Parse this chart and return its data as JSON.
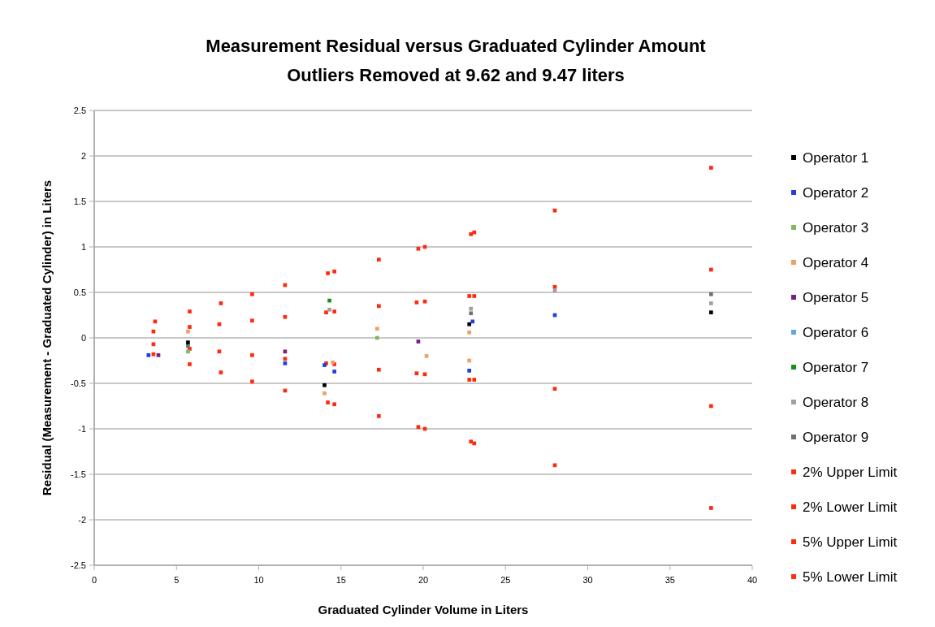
{
  "chart_data": {
    "type": "scatter",
    "title": "Measurement Residual versus Graduated Cylinder Amount",
    "subtitle": "Outliers Removed at 9.62 and 9.47 liters",
    "xlabel": "Graduated Cylinder Volume in Liters",
    "ylabel": "Residual (Measurement - Graduated Cylinder) in Liters",
    "xlim": [
      0,
      40
    ],
    "xticks": [
      0,
      5,
      10,
      15,
      20,
      25,
      30,
      35,
      40
    ],
    "ylim": [
      -2.5,
      2.5
    ],
    "yticks": [
      -2.5,
      -2,
      -1.5,
      -1,
      -0.5,
      0,
      0.5,
      1,
      1.5,
      2,
      2.5
    ],
    "grid": "y",
    "legend": "right",
    "marker": "square",
    "series": [
      {
        "name": "Operator 1",
        "color": "#000000",
        "x": [
          5.7,
          14,
          22.8,
          37.5
        ],
        "values": [
          -0.05,
          -0.52,
          0.15,
          0.28
        ]
      },
      {
        "name": "Operator 2",
        "color": "#1f3fe0",
        "x": [
          3.3,
          11.6,
          14,
          14.6,
          23,
          22.8,
          28
        ],
        "values": [
          -0.19,
          -0.28,
          -0.3,
          -0.37,
          0.18,
          -0.36,
          0.25
        ]
      },
      {
        "name": "Operator 3",
        "color": "#80b860",
        "x": [
          5.7,
          17.2
        ],
        "values": [
          -0.15,
          0
        ]
      },
      {
        "name": "Operator 4",
        "color": "#f0a060",
        "x": [
          5.7,
          14.5,
          14,
          17.2,
          20.2,
          22.8,
          22.8
        ],
        "values": [
          0.07,
          -0.27,
          -0.61,
          0.1,
          -0.2,
          0.06,
          -0.25
        ]
      },
      {
        "name": "Operator 5",
        "color": "#7a1f7a",
        "x": [
          3.9,
          11.6,
          19.7
        ],
        "values": [
          -0.19,
          -0.15,
          -0.04
        ]
      },
      {
        "name": "Operator 6",
        "color": "#60a8e0"
      },
      {
        "name": "Operator 7",
        "color": "#1a8f1a",
        "x": [
          14.3
        ],
        "values": [
          0.41
        ]
      },
      {
        "name": "Operator 8",
        "color": "#a0a0a0",
        "x": [
          14.3,
          22.9,
          28,
          37.5
        ],
        "values": [
          0.31,
          0.32,
          0.52,
          0.38
        ]
      },
      {
        "name": "Operator 9",
        "color": "#707070",
        "x": [
          5.7,
          22.9,
          37.5
        ],
        "values": [
          -0.09,
          0.27,
          0.48
        ]
      },
      {
        "name": "2% Upper Limit",
        "color": "#ff2a10",
        "x": [
          3.6,
          5.8,
          7.6,
          9.6,
          11.6,
          14.1,
          14.6,
          17.3,
          19.6,
          20.1,
          22.8,
          23.1,
          28,
          37.5
        ],
        "values": [
          0.07,
          0.12,
          0.15,
          0.19,
          0.23,
          0.28,
          0.29,
          0.35,
          0.39,
          0.4,
          0.46,
          0.46,
          0.56,
          0.75
        ]
      },
      {
        "name": "2% Lower Limit",
        "color": "#ff2a10",
        "x": [
          3.6,
          5.8,
          7.6,
          9.6,
          11.6,
          14.1,
          14.6,
          17.3,
          19.6,
          20.1,
          22.8,
          23.1,
          28,
          37.5
        ],
        "values": [
          -0.07,
          -0.12,
          -0.15,
          -0.19,
          -0.23,
          -0.28,
          -0.29,
          -0.35,
          -0.39,
          -0.4,
          -0.46,
          -0.46,
          -0.56,
          -0.75
        ]
      },
      {
        "name": "5% Upper Limit",
        "color": "#ff2a10",
        "x": [
          3.7,
          5.8,
          7.7,
          9.6,
          11.6,
          14.2,
          14.6,
          17.3,
          19.7,
          20.1,
          22.9,
          23.1,
          28,
          37.5
        ],
        "values": [
          0.18,
          0.29,
          0.38,
          0.48,
          0.58,
          0.71,
          0.73,
          0.86,
          0.98,
          1.0,
          1.14,
          1.16,
          1.4,
          1.87
        ]
      },
      {
        "name": "5% Lower Limit",
        "color": "#ff2a10",
        "x": [
          3.6,
          5.8,
          7.7,
          9.6,
          11.6,
          14.2,
          14.6,
          17.3,
          19.7,
          20.1,
          22.9,
          23.1,
          28,
          37.5
        ],
        "values": [
          -0.18,
          -0.29,
          -0.38,
          -0.48,
          -0.58,
          -0.71,
          -0.73,
          -0.86,
          -0.98,
          -1.0,
          -1.14,
          -1.16,
          -1.4,
          -1.87
        ]
      }
    ]
  }
}
